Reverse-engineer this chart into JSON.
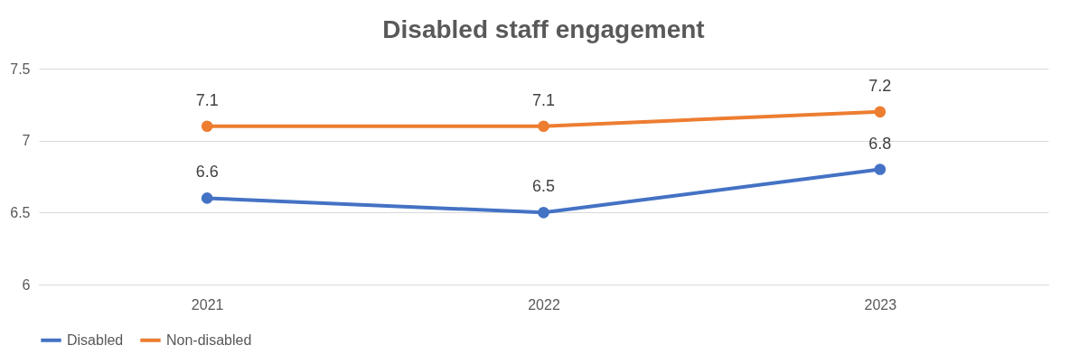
{
  "chart_data": {
    "type": "line",
    "title": "Disabled staff engagement",
    "categories": [
      "2021",
      "2022",
      "2023"
    ],
    "series": [
      {
        "name": "Disabled",
        "color": "#4472c4",
        "values": [
          6.6,
          6.5,
          6.8
        ]
      },
      {
        "name": "Non-disabled",
        "color": "#ed7d31",
        "values": [
          7.1,
          7.1,
          7.2
        ]
      }
    ],
    "ylim": [
      6,
      7.5
    ],
    "yticks": [
      6,
      6.5,
      7,
      7.5
    ],
    "grid": "y",
    "legend": "bottom",
    "marker": "circle",
    "line_style": "solid",
    "data_labels": true
  }
}
